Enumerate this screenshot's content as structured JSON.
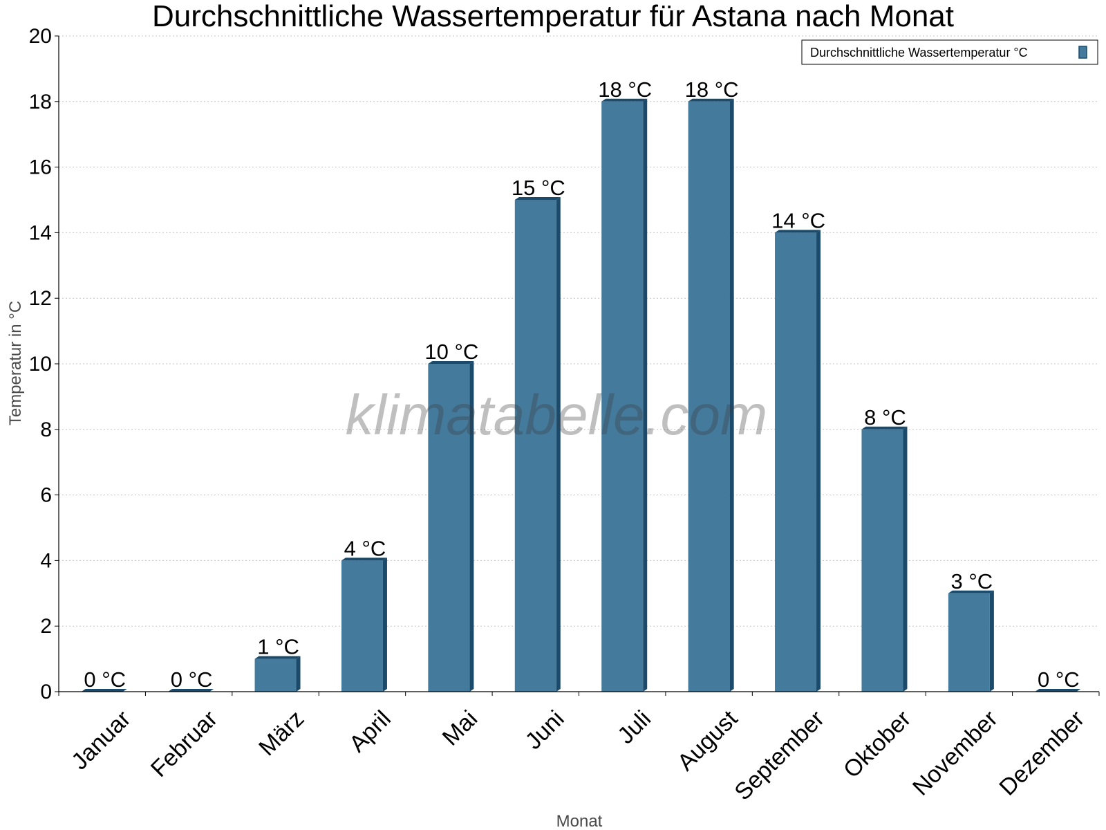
{
  "chart_data": {
    "type": "bar",
    "title": "Durchschnittliche Wassertemperatur für Astana nach Monat",
    "xlabel": "Monat",
    "ylabel": "Temperatur in °C",
    "categories": [
      "Januar",
      "Februar",
      "März",
      "April",
      "Mai",
      "Juni",
      "Juli",
      "August",
      "September",
      "Oktober",
      "November",
      "Dezember"
    ],
    "series": [
      {
        "name": "Durchschnittliche Wassertemperatur °C",
        "values": [
          0,
          0,
          1,
          4,
          10,
          15,
          18,
          18,
          14,
          8,
          3,
          0
        ],
        "data_labels": [
          "0 °C",
          "0 °C",
          "1 °C",
          "4 °C",
          "10 °C",
          "15 °C",
          "18 °C",
          "18 °C",
          "14 °C",
          "8 °C",
          "3 °C",
          "0 °C"
        ]
      }
    ],
    "ylim": [
      0,
      20
    ],
    "yticks": [
      0,
      2,
      4,
      6,
      8,
      10,
      12,
      14,
      16,
      18,
      20
    ],
    "grid": "horizontal dotted",
    "legend_position": "top-right",
    "bar_color": "#447a9c",
    "bar_edge_color": "#1b4a6b",
    "watermark": "klimatabelle.com"
  }
}
